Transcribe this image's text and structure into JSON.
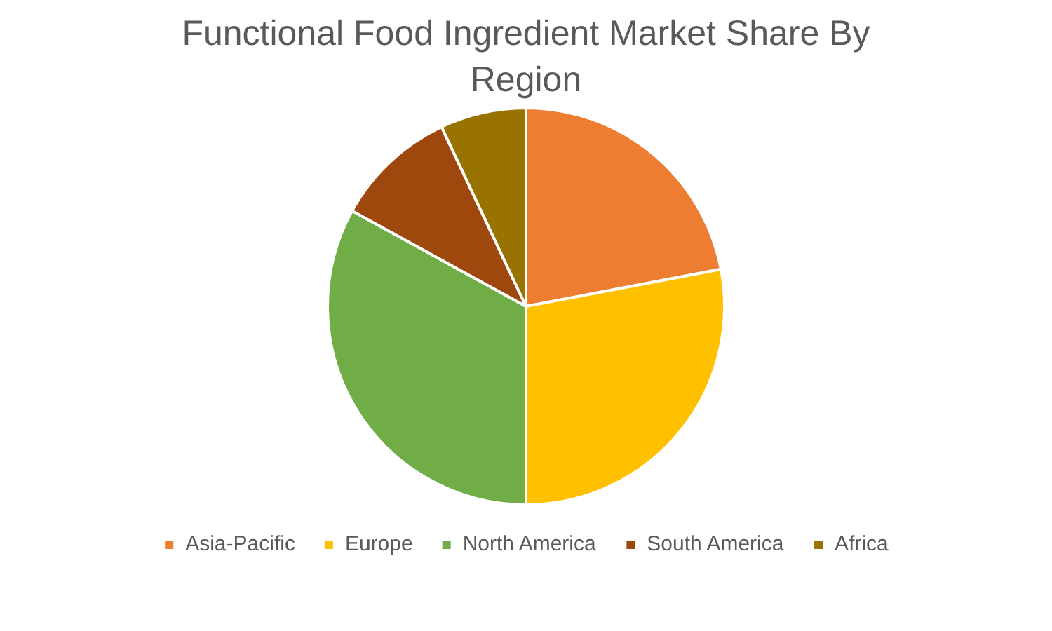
{
  "chart_data": {
    "type": "pie",
    "title": "Functional Food Ingredient Market Share By Region",
    "categories": [
      "Asia-Pacific",
      "Europe",
      "North America",
      "South America",
      "Africa"
    ],
    "values": [
      22,
      28,
      33,
      10,
      7
    ],
    "colors": [
      "#ed7d31",
      "#ffc000",
      "#70ad47",
      "#9e480e",
      "#997300"
    ],
    "legend": "bottom"
  }
}
